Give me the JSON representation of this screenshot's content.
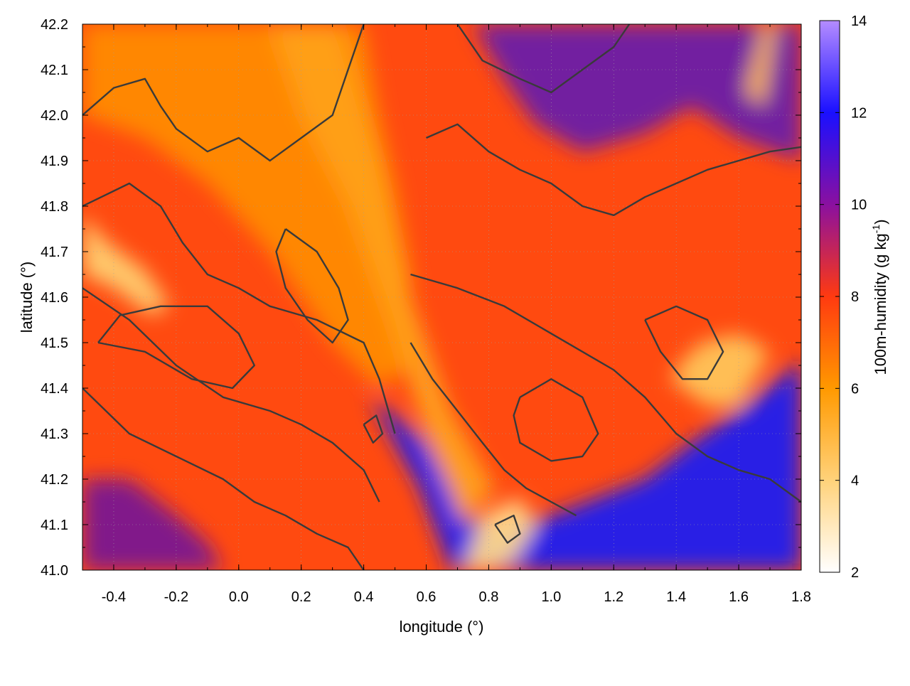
{
  "chart_data": {
    "type": "heatmap",
    "title": "",
    "xlabel": "longitude (°)",
    "ylabel": "latitude (°)",
    "colorbar_label_main": "100m-humidity (g kg",
    "colorbar_label_sup": "-1",
    "colorbar_label_end": ")",
    "xlim": [
      -0.5,
      1.8
    ],
    "ylim": [
      41.0,
      42.2
    ],
    "x_ticks": [
      -0.4,
      -0.2,
      0.0,
      0.2,
      0.4,
      0.6,
      0.8,
      1.0,
      1.2,
      1.4,
      1.6,
      1.8
    ],
    "x_tick_labels": [
      "-0.4",
      "-0.2",
      "0.0",
      "0.2",
      "0.4",
      "0.6",
      "0.8",
      "1.0",
      "1.2",
      "1.4",
      "1.6",
      "1.8"
    ],
    "y_ticks": [
      41.0,
      41.1,
      41.2,
      41.3,
      41.4,
      41.5,
      41.6,
      41.7,
      41.8,
      41.9,
      42.0,
      42.1,
      42.2
    ],
    "y_tick_labels": [
      "41.0",
      "41.1",
      "41.2",
      "41.3",
      "41.4",
      "41.5",
      "41.6",
      "41.7",
      "41.8",
      "41.9",
      "42.0",
      "42.1",
      "42.2"
    ],
    "colorbar_range": [
      2,
      14
    ],
    "colorbar_ticks": [
      2,
      4,
      6,
      8,
      10,
      12,
      14
    ],
    "colorbar_tick_labels": [
      "2",
      "4",
      "6",
      "8",
      "10",
      "12",
      "14"
    ],
    "colorscale": [
      "#ffffff",
      "#ffd27a",
      "#ff9900",
      "#ff3a10",
      "#8a10a0",
      "#1a10ff",
      "#b48cff"
    ],
    "grid": true,
    "legend": "none",
    "regions": [
      {
        "name": "sea-blue",
        "humidity": 11.5,
        "color": "#2020f0",
        "polygon": [
          [
            0.42,
            41.38
          ],
          [
            0.58,
            41.18
          ],
          [
            0.68,
            41.0
          ],
          [
            1.8,
            41.0
          ],
          [
            1.8,
            41.46
          ],
          [
            1.62,
            41.36
          ],
          [
            1.45,
            41.28
          ],
          [
            1.3,
            41.2
          ],
          [
            1.15,
            41.16
          ],
          [
            1.0,
            41.12
          ],
          [
            0.9,
            41.1
          ],
          [
            0.8,
            41.08
          ],
          [
            0.7,
            41.15
          ],
          [
            0.6,
            41.28
          ],
          [
            0.5,
            41.34
          ]
        ]
      },
      {
        "name": "ne-purple",
        "humidity": 9.5,
        "color": "#6a1aa8",
        "polygon": [
          [
            0.75,
            42.2
          ],
          [
            1.8,
            42.2
          ],
          [
            1.8,
            41.9
          ],
          [
            1.6,
            41.95
          ],
          [
            1.45,
            42.02
          ],
          [
            1.3,
            41.96
          ],
          [
            1.1,
            41.92
          ],
          [
            0.95,
            41.98
          ],
          [
            0.85,
            42.08
          ]
        ]
      },
      {
        "name": "sw-purple",
        "humidity": 9.2,
        "color": "#7a1490",
        "polygon": [
          [
            -0.5,
            41.0
          ],
          [
            -0.5,
            41.2
          ],
          [
            -0.35,
            41.2
          ],
          [
            -0.2,
            41.12
          ],
          [
            -0.1,
            41.06
          ],
          [
            -0.05,
            41.0
          ]
        ]
      },
      {
        "name": "nw-orange",
        "humidity": 6.0,
        "color": "#ff8a00",
        "polygon": [
          [
            -0.5,
            42.2
          ],
          [
            0.4,
            42.2
          ],
          [
            0.45,
            42.0
          ],
          [
            0.5,
            41.85
          ],
          [
            0.55,
            41.65
          ],
          [
            0.55,
            41.45
          ],
          [
            0.45,
            41.4
          ],
          [
            0.3,
            41.5
          ],
          [
            0.1,
            41.7
          ],
          [
            -0.1,
            41.85
          ],
          [
            -0.3,
            41.95
          ],
          [
            -0.5,
            42.0
          ]
        ]
      },
      {
        "name": "plume-orange",
        "humidity": 5.0,
        "color": "#ffa01a",
        "polygon": [
          [
            0.1,
            42.2
          ],
          [
            0.32,
            42.2
          ],
          [
            0.45,
            41.9
          ],
          [
            0.55,
            41.6
          ],
          [
            0.68,
            41.35
          ],
          [
            0.82,
            41.18
          ],
          [
            0.72,
            41.1
          ],
          [
            0.6,
            41.3
          ],
          [
            0.48,
            41.55
          ],
          [
            0.35,
            41.8
          ],
          [
            0.2,
            42.0
          ]
        ]
      },
      {
        "name": "west-light",
        "humidity": 3.5,
        "color": "#ffcf70",
        "polygon": [
          [
            -0.5,
            41.78
          ],
          [
            -0.42,
            41.72
          ],
          [
            -0.3,
            41.66
          ],
          [
            -0.22,
            41.58
          ],
          [
            -0.28,
            41.56
          ],
          [
            -0.4,
            41.62
          ],
          [
            -0.5,
            41.65
          ]
        ]
      },
      {
        "name": "coast-light",
        "humidity": 3.2,
        "color": "#ffd88a",
        "polygon": [
          [
            0.72,
            41.0
          ],
          [
            0.78,
            41.12
          ],
          [
            0.9,
            41.16
          ],
          [
            0.95,
            41.1
          ],
          [
            0.88,
            41.02
          ],
          [
            0.8,
            41.0
          ]
        ]
      },
      {
        "name": "east-light",
        "humidity": 3.8,
        "color": "#ffc45a",
        "polygon": [
          [
            1.38,
            41.42
          ],
          [
            1.5,
            41.36
          ],
          [
            1.6,
            41.36
          ],
          [
            1.7,
            41.48
          ],
          [
            1.6,
            41.52
          ],
          [
            1.48,
            41.5
          ],
          [
            1.42,
            41.46
          ]
        ]
      },
      {
        "name": "ne-light-streak",
        "humidity": 3.5,
        "color": "#ffb850",
        "polygon": [
          [
            1.62,
            42.05
          ],
          [
            1.68,
            42.2
          ],
          [
            1.72,
            42.2
          ],
          [
            1.68,
            42.02
          ]
        ]
      }
    ],
    "contours": [
      [
        [
          -0.5,
          42.0
        ],
        [
          -0.4,
          42.06
        ],
        [
          -0.3,
          42.08
        ],
        [
          -0.25,
          42.02
        ],
        [
          -0.2,
          41.97
        ],
        [
          -0.1,
          41.92
        ],
        [
          0.0,
          41.95
        ],
        [
          0.1,
          41.9
        ],
        [
          0.2,
          41.95
        ],
        [
          0.3,
          42.0
        ],
        [
          0.35,
          42.1
        ],
        [
          0.4,
          42.2
        ]
      ],
      [
        [
          -0.5,
          41.8
        ],
        [
          -0.35,
          41.85
        ],
        [
          -0.25,
          41.8
        ],
        [
          -0.18,
          41.72
        ],
        [
          -0.1,
          41.65
        ],
        [
          0.0,
          41.62
        ],
        [
          0.1,
          41.58
        ],
        [
          0.25,
          41.55
        ],
        [
          0.4,
          41.5
        ],
        [
          0.45,
          41.42
        ],
        [
          0.5,
          41.3
        ]
      ],
      [
        [
          -0.5,
          41.62
        ],
        [
          -0.35,
          41.55
        ],
        [
          -0.2,
          41.45
        ],
        [
          -0.05,
          41.38
        ],
        [
          0.1,
          41.35
        ],
        [
          0.2,
          41.32
        ],
        [
          0.3,
          41.28
        ],
        [
          0.4,
          41.22
        ],
        [
          0.45,
          41.15
        ]
      ],
      [
        [
          -0.5,
          41.4
        ],
        [
          -0.35,
          41.3
        ],
        [
          -0.2,
          41.25
        ],
        [
          -0.05,
          41.2
        ],
        [
          0.05,
          41.15
        ],
        [
          0.15,
          41.12
        ],
        [
          0.25,
          41.08
        ],
        [
          0.35,
          41.05
        ],
        [
          0.4,
          41.0
        ]
      ],
      [
        [
          0.55,
          41.5
        ],
        [
          0.62,
          41.42
        ],
        [
          0.7,
          41.35
        ],
        [
          0.78,
          41.28
        ],
        [
          0.85,
          41.22
        ],
        [
          0.92,
          41.18
        ],
        [
          1.0,
          41.15
        ],
        [
          1.08,
          41.12
        ]
      ],
      [
        [
          0.55,
          41.65
        ],
        [
          0.7,
          41.62
        ],
        [
          0.85,
          41.58
        ],
        [
          1.0,
          41.52
        ],
        [
          1.1,
          41.48
        ],
        [
          1.2,
          41.44
        ],
        [
          1.3,
          41.38
        ],
        [
          1.4,
          41.3
        ],
        [
          1.5,
          41.25
        ],
        [
          1.6,
          41.22
        ],
        [
          1.7,
          41.2
        ],
        [
          1.8,
          41.15
        ]
      ],
      [
        [
          0.9,
          41.38
        ],
        [
          1.0,
          41.42
        ],
        [
          1.1,
          41.38
        ],
        [
          1.15,
          41.3
        ],
        [
          1.1,
          41.25
        ],
        [
          1.0,
          41.24
        ],
        [
          0.9,
          41.28
        ],
        [
          0.88,
          41.34
        ],
        [
          0.9,
          41.38
        ]
      ],
      [
        [
          0.6,
          41.95
        ],
        [
          0.7,
          41.98
        ],
        [
          0.8,
          41.92
        ],
        [
          0.9,
          41.88
        ],
        [
          1.0,
          41.85
        ],
        [
          1.1,
          41.8
        ],
        [
          1.2,
          41.78
        ],
        [
          1.3,
          41.82
        ],
        [
          1.4,
          41.85
        ],
        [
          1.5,
          41.88
        ],
        [
          1.6,
          41.9
        ],
        [
          1.7,
          41.92
        ],
        [
          1.8,
          41.93
        ]
      ],
      [
        [
          0.7,
          42.2
        ],
        [
          0.78,
          42.12
        ],
        [
          0.9,
          42.08
        ],
        [
          1.0,
          42.05
        ],
        [
          1.1,
          42.1
        ],
        [
          1.2,
          42.15
        ],
        [
          1.25,
          42.2
        ]
      ],
      [
        [
          -0.45,
          41.5
        ],
        [
          -0.3,
          41.48
        ],
        [
          -0.15,
          41.42
        ],
        [
          -0.02,
          41.4
        ],
        [
          0.05,
          41.45
        ],
        [
          0.0,
          41.52
        ],
        [
          -0.1,
          41.58
        ],
        [
          -0.25,
          41.58
        ],
        [
          -0.38,
          41.56
        ],
        [
          -0.45,
          41.5
        ]
      ],
      [
        [
          0.15,
          41.75
        ],
        [
          0.25,
          41.7
        ],
        [
          0.32,
          41.62
        ],
        [
          0.35,
          41.55
        ],
        [
          0.3,
          41.5
        ],
        [
          0.22,
          41.55
        ],
        [
          0.15,
          41.62
        ],
        [
          0.12,
          41.7
        ],
        [
          0.15,
          41.75
        ]
      ],
      [
        [
          1.3,
          41.55
        ],
        [
          1.4,
          41.58
        ],
        [
          1.5,
          41.55
        ],
        [
          1.55,
          41.48
        ],
        [
          1.5,
          41.42
        ],
        [
          1.42,
          41.42
        ],
        [
          1.35,
          41.48
        ],
        [
          1.3,
          41.55
        ]
      ],
      [
        [
          0.4,
          41.32
        ],
        [
          0.43,
          41.28
        ],
        [
          0.46,
          41.3
        ],
        [
          0.44,
          41.34
        ],
        [
          0.4,
          41.32
        ]
      ],
      [
        [
          0.82,
          41.1
        ],
        [
          0.86,
          41.06
        ],
        [
          0.9,
          41.08
        ],
        [
          0.88,
          41.12
        ],
        [
          0.82,
          41.1
        ]
      ]
    ]
  }
}
